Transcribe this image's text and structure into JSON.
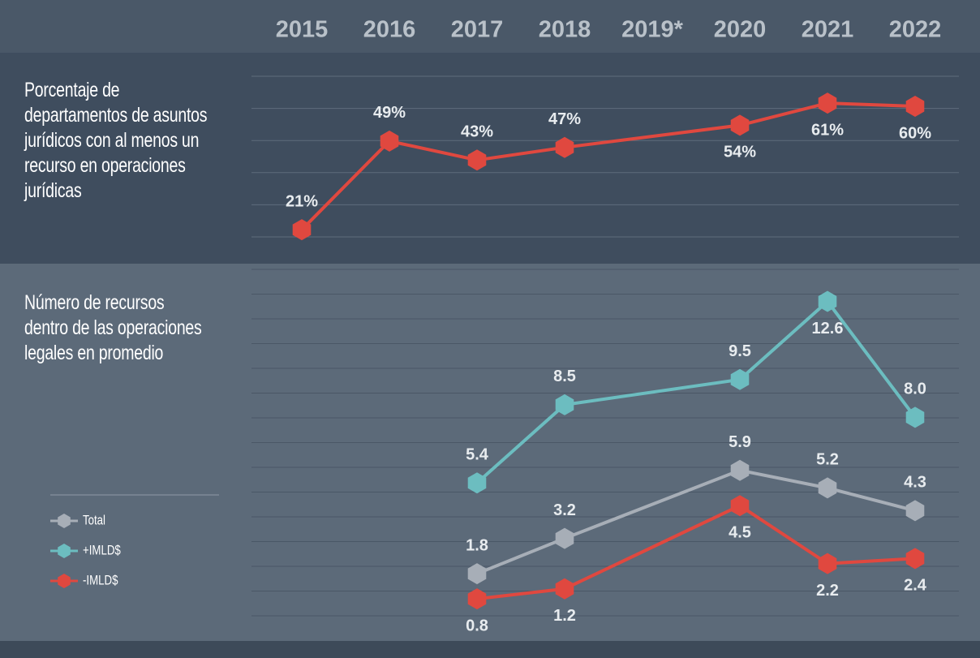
{
  "chart_data": [
    {
      "type": "line",
      "title": "Porcentaje de departamentos de asuntos jurídicos con al menos un recurso en operaciones jurídicas",
      "x": [
        2015,
        2016,
        2017,
        2018,
        2020,
        2021,
        2022
      ],
      "values": [
        21,
        49,
        43,
        47,
        54,
        61,
        60
      ],
      "value_labels": [
        "21%",
        "49%",
        "43%",
        "47%",
        "54%",
        "61%",
        "60%"
      ],
      "color": "#e0483f",
      "xlim": [
        2014.5,
        2022.5
      ],
      "xticks": [
        2015,
        2016,
        2017,
        2018,
        {
          "value": 2019,
          "label": "2019*"
        },
        2020,
        2021,
        2022
      ],
      "ylim": [
        20,
        70
      ]
    },
    {
      "type": "line",
      "title": "Número de recursos dentro de las operaciones legales en promedio",
      "x": [
        2017,
        2018,
        2020,
        2021,
        2022
      ],
      "xlim": [
        2014.5,
        2022.5
      ],
      "ylim": [
        0,
        14
      ],
      "series": [
        {
          "name": "Total",
          "color": "#a7aeb7",
          "values": [
            1.8,
            3.2,
            5.9,
            5.2,
            4.3
          ]
        },
        {
          "name": "+IMLD$",
          "color": "#6cbdc0",
          "values": [
            5.4,
            8.5,
            9.5,
            12.6,
            8
          ],
          "value_labels": [
            "5.4",
            "8.5",
            "9.5",
            "12.6",
            "8.0"
          ]
        },
        {
          "name": "-IMLD$",
          "color": "#e0483f",
          "values": [
            0.8,
            1.2,
            4.5,
            2.2,
            2.4
          ]
        }
      ]
    }
  ]
}
